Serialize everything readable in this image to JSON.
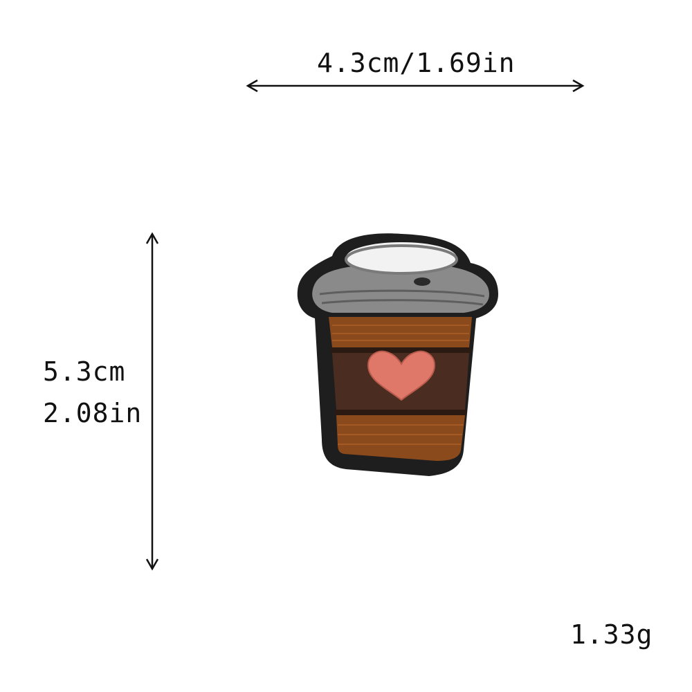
{
  "dimensions": {
    "width": "4.3cm/1.69in",
    "height_cm": "5.3cm",
    "height_in": "2.08in",
    "weight": "1.33g"
  },
  "product": {
    "icon": "coffee-cup-patch",
    "colors": {
      "border": "#1e1e1e",
      "lid": "#8a8a8a",
      "lid_top": "#f2f2f2",
      "sleeve": "#4a2c20",
      "band": "#8b4a1c",
      "heart": "#e0786a"
    }
  }
}
